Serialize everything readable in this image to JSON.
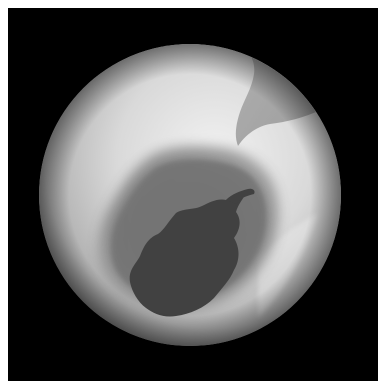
{
  "image": {
    "subject": "globe-ozone-hole",
    "colors": {
      "background": "#000000",
      "frame": "#ffffff",
      "globe_light": "#ececec",
      "globe_mid": "#bdbdbd",
      "globe_edge": "#6e6e6e",
      "land_light": "#9c9c9c",
      "hole_outer": "#808080",
      "hole_core": "#5c5c5c",
      "continent": "#3f3f3f"
    }
  }
}
